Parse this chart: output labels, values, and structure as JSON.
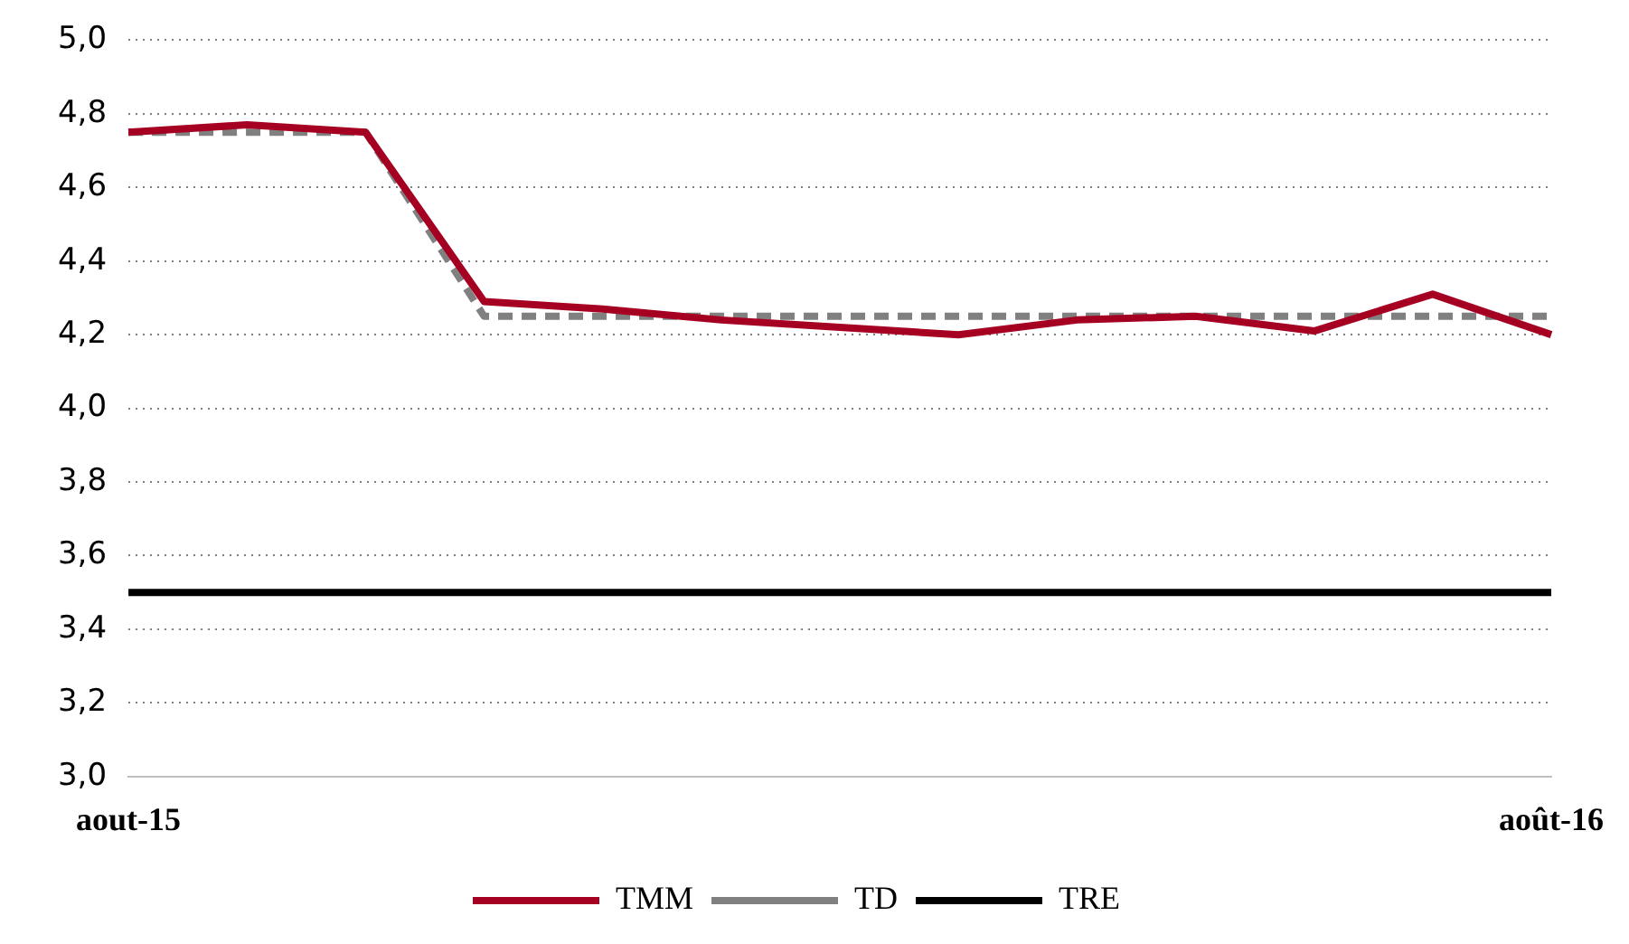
{
  "chart_data": {
    "type": "line",
    "categories": [
      "aout-15",
      null,
      null,
      null,
      null,
      null,
      null,
      null,
      null,
      null,
      null,
      null,
      "août-16"
    ],
    "series": [
      {
        "name": "TMM",
        "color": "#a50021",
        "line_style": "solid",
        "values": [
          4.75,
          4.77,
          4.75,
          4.29,
          4.27,
          4.24,
          4.22,
          4.2,
          4.24,
          4.25,
          4.21,
          4.31,
          4.2
        ]
      },
      {
        "name": "TD",
        "color": "#808080",
        "line_style": "dashed",
        "values": [
          4.75,
          4.75,
          4.75,
          4.25,
          4.25,
          4.25,
          4.25,
          4.25,
          4.25,
          4.25,
          4.25,
          4.25,
          4.25
        ]
      },
      {
        "name": "TRE",
        "color": "#000000",
        "line_style": "solid",
        "values": [
          3.5,
          3.5,
          3.5,
          3.5,
          3.5,
          3.5,
          3.5,
          3.5,
          3.5,
          3.5,
          3.5,
          3.5,
          3.5
        ]
      }
    ],
    "ylim": [
      3.0,
      5.0
    ],
    "yticks": [
      {
        "value": 3.0,
        "label": "3,0"
      },
      {
        "value": 3.2,
        "label": "3,2"
      },
      {
        "value": 3.4,
        "label": "3,4"
      },
      {
        "value": 3.6,
        "label": "3,6"
      },
      {
        "value": 3.8,
        "label": "3,8"
      },
      {
        "value": 4.0,
        "label": "4,0"
      },
      {
        "value": 4.2,
        "label": "4,2"
      },
      {
        "value": 4.4,
        "label": "4,4"
      },
      {
        "value": 4.6,
        "label": "4,6"
      },
      {
        "value": 4.8,
        "label": "4,8"
      },
      {
        "value": 5.0,
        "label": "5,0"
      }
    ],
    "grid": "y",
    "legend": "bottom",
    "marker": "none"
  }
}
